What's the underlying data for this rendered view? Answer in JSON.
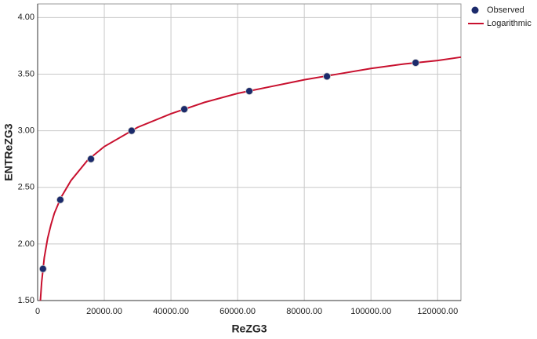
{
  "chart_data": {
    "type": "scatter",
    "x_label": "ReZG3",
    "y_label": "ENTReZG3",
    "xlim": [
      0,
      127000
    ],
    "ylim": [
      1.5,
      4.12
    ],
    "xticks": [
      0,
      {
        "value": 20000,
        "label": "20000.00"
      },
      {
        "value": 40000,
        "label": "40000.00"
      },
      {
        "value": 60000,
        "label": "60000.00"
      },
      {
        "value": 80000,
        "label": "80000.00"
      },
      {
        "value": 100000,
        "label": "100000.00"
      },
      {
        "value": 120000,
        "label": "120000.00"
      }
    ],
    "yticks": [
      {
        "value": 1.5,
        "label": "1.50"
      },
      {
        "value": 2.0,
        "label": "2.00"
      },
      {
        "value": 2.5,
        "label": "2.50"
      },
      {
        "value": 3.0,
        "label": "3.00"
      },
      {
        "value": 3.5,
        "label": "3.50"
      },
      {
        "value": 4.0,
        "label": "4.00"
      }
    ],
    "grid": true,
    "legend": "right",
    "series": [
      {
        "name": "Observed",
        "type": "scatter",
        "color": "#1b2a6b",
        "x": [
          1600,
          6800,
          16000,
          28200,
          44000,
          63500,
          86800,
          113400
        ],
        "values": [
          1.78,
          2.39,
          2.75,
          3.0,
          3.19,
          3.35,
          3.48,
          3.6
        ]
      },
      {
        "name": "Logarithmic",
        "type": "line",
        "color": "#c8102e",
        "x": [
          830,
          1200,
          2000,
          3000,
          4000,
          5000,
          7000,
          10000,
          15000,
          20000,
          30000,
          40000,
          50000,
          60000,
          70000,
          80000,
          90000,
          100000,
          110000,
          120000,
          127000
        ],
        "values": [
          1.5,
          1.66,
          1.88,
          2.05,
          2.17,
          2.27,
          2.41,
          2.56,
          2.74,
          2.86,
          3.03,
          3.15,
          3.25,
          3.33,
          3.39,
          3.45,
          3.5,
          3.55,
          3.59,
          3.62,
          3.65
        ]
      }
    ]
  }
}
